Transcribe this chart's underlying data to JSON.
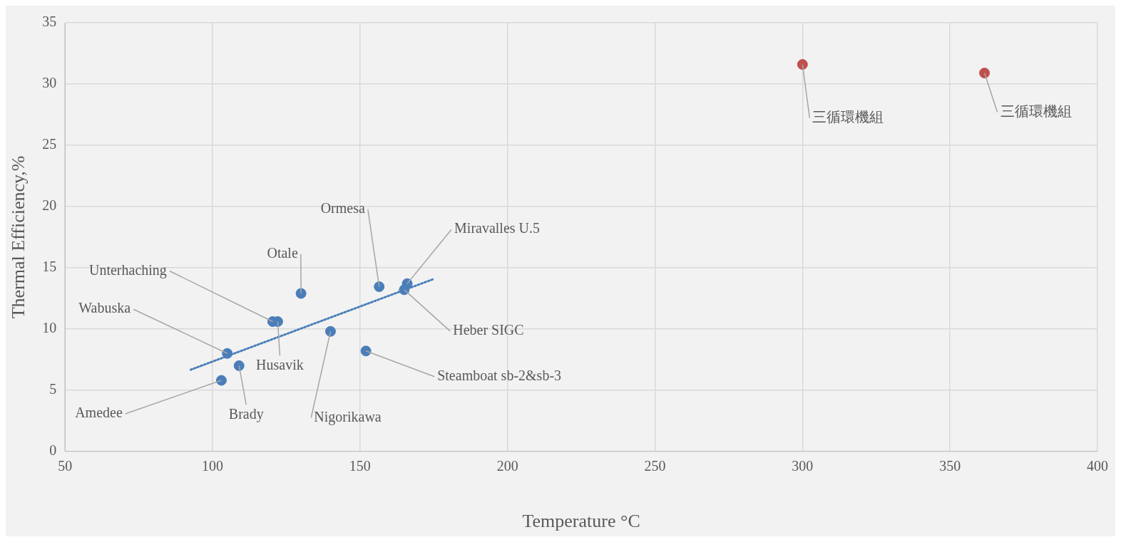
{
  "chart_data": {
    "type": "scatter",
    "xlabel": "Temperature °C",
    "ylabel": "Thermal Efficiency,%",
    "xlim": [
      50,
      400
    ],
    "xticks": [
      50,
      100,
      150,
      200,
      250,
      300,
      350,
      400
    ],
    "ylim": [
      0,
      35
    ],
    "yticks": [
      0,
      5,
      10,
      15,
      20,
      25,
      30,
      35
    ],
    "grid": true,
    "marker": "circle",
    "series": [
      {
        "type": "scatter",
        "color": "#4a7ebb",
        "x": [
          103,
          109,
          105,
          120.4,
          122.1,
          130,
          140,
          152,
          156.5,
          165,
          166
        ],
        "values": [
          5.8,
          7.0,
          8.0,
          10.6,
          10.6,
          12.9,
          9.8,
          8.2,
          13.45,
          13.2,
          13.7
        ]
      },
      {
        "type": "scatter",
        "color": "#c0504d",
        "x": [
          300,
          361.7
        ],
        "values": [
          31.6,
          30.9
        ]
      },
      {
        "type": "line",
        "color": "#4a7ebb",
        "line_style": "dotted",
        "marker": "none",
        "x": [
          92.6,
          175
        ],
        "values": [
          6.67,
          14.08
        ]
      }
    ],
    "annotations": [
      {
        "text": "Amedee",
        "x": 103,
        "y": 5.8
      },
      {
        "text": "Brady",
        "x": 109,
        "y": 7.0
      },
      {
        "text": "Wabuska",
        "x": 105,
        "y": 8.0
      },
      {
        "text": "Unterhaching",
        "x": 120.4,
        "y": 10.6
      },
      {
        "text": "Husavik",
        "x": 122.1,
        "y": 10.6
      },
      {
        "text": "Otale",
        "x": 130,
        "y": 12.9
      },
      {
        "text": "Nigorikawa",
        "x": 140,
        "y": 9.8
      },
      {
        "text": "Steamboat sb-2&sb-3",
        "x": 152,
        "y": 8.2
      },
      {
        "text": "Ormesa",
        "x": 156.5,
        "y": 13.45
      },
      {
        "text": "Heber SIGC",
        "x": 165,
        "y": 13.2
      },
      {
        "text": "Miravalles U.5",
        "x": 166,
        "y": 13.7
      },
      {
        "text": "三循環機組",
        "x": 300,
        "y": 31.6
      },
      {
        "text": "三循環機組",
        "x": 361.7,
        "y": 30.9
      }
    ]
  }
}
